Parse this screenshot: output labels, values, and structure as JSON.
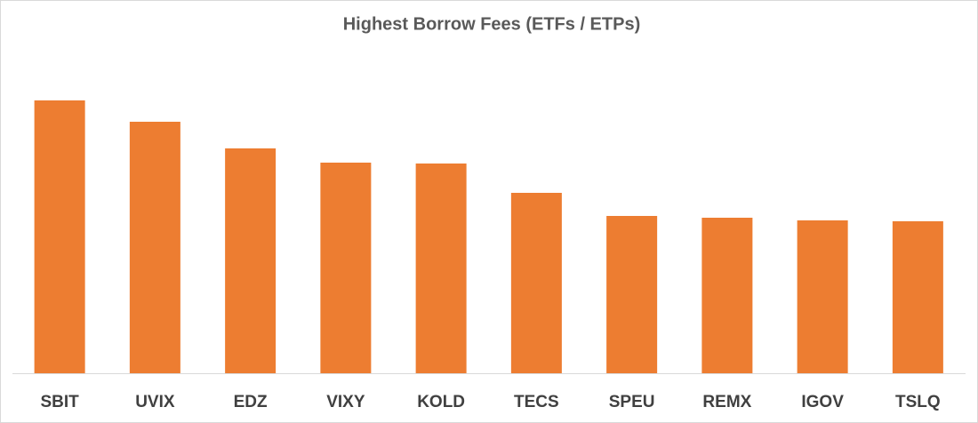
{
  "chart_data": {
    "type": "bar",
    "title": "Highest Borrow Fees (ETFs / ETPs)",
    "categories": [
      "SBIT",
      "UVIX",
      "EDZ",
      "VIXY",
      "KOLD",
      "TECS",
      "SPEU",
      "REMX",
      "IGOV",
      "TSLQ"
    ],
    "values": [
      307,
      283,
      253,
      237,
      236,
      203,
      177,
      175,
      172,
      171
    ],
    "color": "#ed7d31"
  }
}
